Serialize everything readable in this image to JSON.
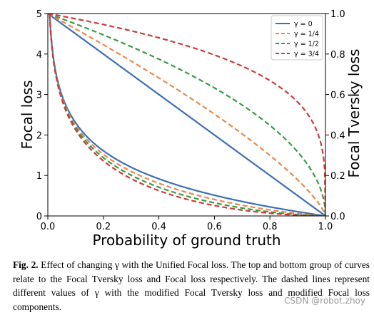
{
  "chart_data": {
    "type": "line",
    "xlabel": "Probability of ground truth",
    "ylabel_left": "Focal loss",
    "ylabel_right": "Focal Tversky loss",
    "xlim": [
      0,
      1
    ],
    "ylim_left": [
      0,
      5
    ],
    "ylim_right": [
      0,
      1
    ],
    "x_ticks": [
      "0.0",
      "0.2",
      "0.4",
      "0.6",
      "0.8",
      "1.0"
    ],
    "y_ticks_left": [
      "0",
      "1",
      "2",
      "3",
      "4",
      "5"
    ],
    "y_ticks_right": [
      "0.0",
      "0.2",
      "0.4",
      "0.6",
      "0.8",
      "1.0"
    ],
    "legend_position": "top-right",
    "series": [
      {
        "name": "γ = 0",
        "color": "#3b6fb6",
        "dashed": false,
        "gamma": 0
      },
      {
        "name": "γ = 1/4",
        "color": "#e8894a",
        "dashed": true,
        "gamma": 0.25
      },
      {
        "name": "γ = 1/2",
        "color": "#3a9a45",
        "dashed": true,
        "gamma": 0.5
      },
      {
        "name": "γ = 3/4",
        "color": "#cc3b3b",
        "dashed": true,
        "gamma": 0.75
      }
    ],
    "curve_groups": {
      "focal_tversky": {
        "axis": "right",
        "formula": "(1-p)^(1-gamma)"
      },
      "focal": {
        "axis": "left",
        "formula": "(1-p)^gamma * -ln(p)"
      }
    }
  },
  "caption": {
    "label": "Fig. 2.",
    "text": "Effect of changing γ with the Unified Focal loss. The top and bottom group of curves relate to the Focal Tversky loss and Focal loss respectively. The dashed lines represent different values of γ with the modified Focal Tversky loss and modified Focal loss components."
  },
  "watermark": "CSDN @robot.zhoy"
}
